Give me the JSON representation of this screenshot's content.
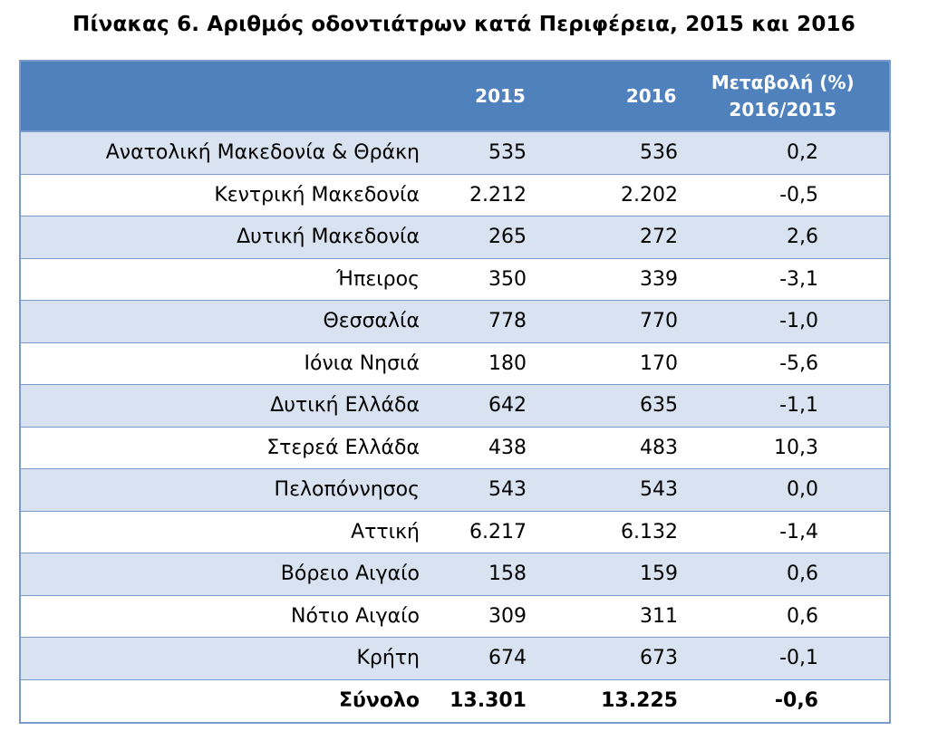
{
  "title": "Πίνακας 6. Αριθμός οδοντιάτρων κατά Περιφέρεια, 2015 και 2016",
  "header": {
    "col_2015": "2015",
    "col_2016": "2016",
    "col_change_line1": "Μεταβολή (%)",
    "col_change_line2": "2016/2015"
  },
  "rows": [
    {
      "region": "Ανατολική Μακεδονία & Θράκη",
      "v2015": "535",
      "v2016": "536",
      "change": "0,2"
    },
    {
      "region": "Κεντρική Μακεδονία",
      "v2015": "2.212",
      "v2016": "2.202",
      "change": "-0,5"
    },
    {
      "region": "Δυτική Μακεδονία",
      "v2015": "265",
      "v2016": "272",
      "change": "2,6"
    },
    {
      "region": "Ήπειρος",
      "v2015": "350",
      "v2016": "339",
      "change": "-3,1"
    },
    {
      "region": "Θεσσαλία",
      "v2015": "778",
      "v2016": "770",
      "change": "-1,0"
    },
    {
      "region": "Ιόνια Νησιά",
      "v2015": "180",
      "v2016": "170",
      "change": "-5,6"
    },
    {
      "region": "Δυτική Ελλάδα",
      "v2015": "642",
      "v2016": "635",
      "change": "-1,1"
    },
    {
      "region": "Στερεά Ελλάδα",
      "v2015": "438",
      "v2016": "483",
      "change": "10,3"
    },
    {
      "region": "Πελοπόννησος",
      "v2015": "543",
      "v2016": "543",
      "change": "0,0"
    },
    {
      "region": "Αττική",
      "v2015": "6.217",
      "v2016": "6.132",
      "change": "-1,4"
    },
    {
      "region": "Βόρειο Αιγαίο",
      "v2015": "158",
      "v2016": "159",
      "change": "0,6"
    },
    {
      "region": "Νότιο Αιγαίο",
      "v2015": "309",
      "v2016": "311",
      "change": "0,6"
    },
    {
      "region": "Κρήτη",
      "v2015": "674",
      "v2016": "673",
      "change": "-0,1"
    }
  ],
  "total": {
    "region": "Σύνολο",
    "v2015": "13.301",
    "v2016": "13.225",
    "change": "-0,6"
  },
  "colors": {
    "header_bg": "#4f81bd",
    "alt_row_bg": "#d9e2f1",
    "border": "#7a9bcc"
  }
}
